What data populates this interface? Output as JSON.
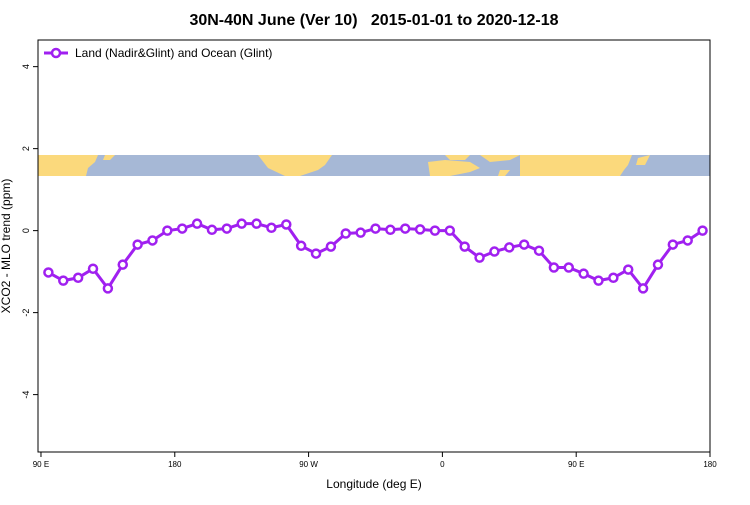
{
  "chart_data": {
    "type": "line",
    "title": "30N-40N June (Ver 10)   2015-01-01 to 2020-12-18",
    "xlabel": "Longitude (deg E)",
    "ylabel": "XCO2 - MLO trend (ppm)",
    "x": [
      95,
      105,
      115,
      125,
      135,
      145,
      155,
      165,
      175,
      185,
      195,
      205,
      215,
      225,
      235,
      245,
      255,
      265,
      275,
      285,
      295,
      305,
      315,
      325,
      335,
      345,
      355,
      365,
      375,
      385,
      395,
      405,
      415,
      425,
      435,
      445,
      455,
      465,
      475,
      485,
      495,
      505,
      515,
      525,
      535
    ],
    "series": [
      {
        "name": "Land (Nadir&Glint) and Ocean (Glint)",
        "color": "#a020f0",
        "values": [
          -1.02,
          -1.22,
          -1.15,
          -0.93,
          -1.41,
          -0.83,
          -0.34,
          -0.24,
          0.0,
          0.05,
          0.17,
          0.02,
          0.05,
          0.17,
          0.17,
          0.07,
          0.15,
          -0.37,
          -0.56,
          -0.39,
          -0.07,
          -0.05,
          0.05,
          0.02,
          0.05,
          0.03,
          0.0,
          0.0,
          -0.39,
          -0.66,
          -0.51,
          -0.41,
          -0.34,
          -0.49,
          -0.9,
          -0.9,
          -1.05,
          -1.22,
          -1.15,
          -0.95,
          -1.41,
          -0.83,
          -0.34,
          -0.24,
          0.0
        ]
      }
    ],
    "xlim": [
      88,
      540
    ],
    "xticks": [
      {
        "value": 90,
        "label": "90 E"
      },
      {
        "value": 180,
        "label": "180"
      },
      {
        "value": 270,
        "label": "90 W"
      },
      {
        "value": 360,
        "label": "0"
      },
      {
        "value": 450,
        "label": "90 E"
      },
      {
        "value": 540,
        "label": "180"
      }
    ],
    "ylim": [
      -5.4,
      4.65
    ],
    "yticks": [
      -4,
      -2,
      0,
      2,
      4
    ],
    "legend": "top-left"
  }
}
